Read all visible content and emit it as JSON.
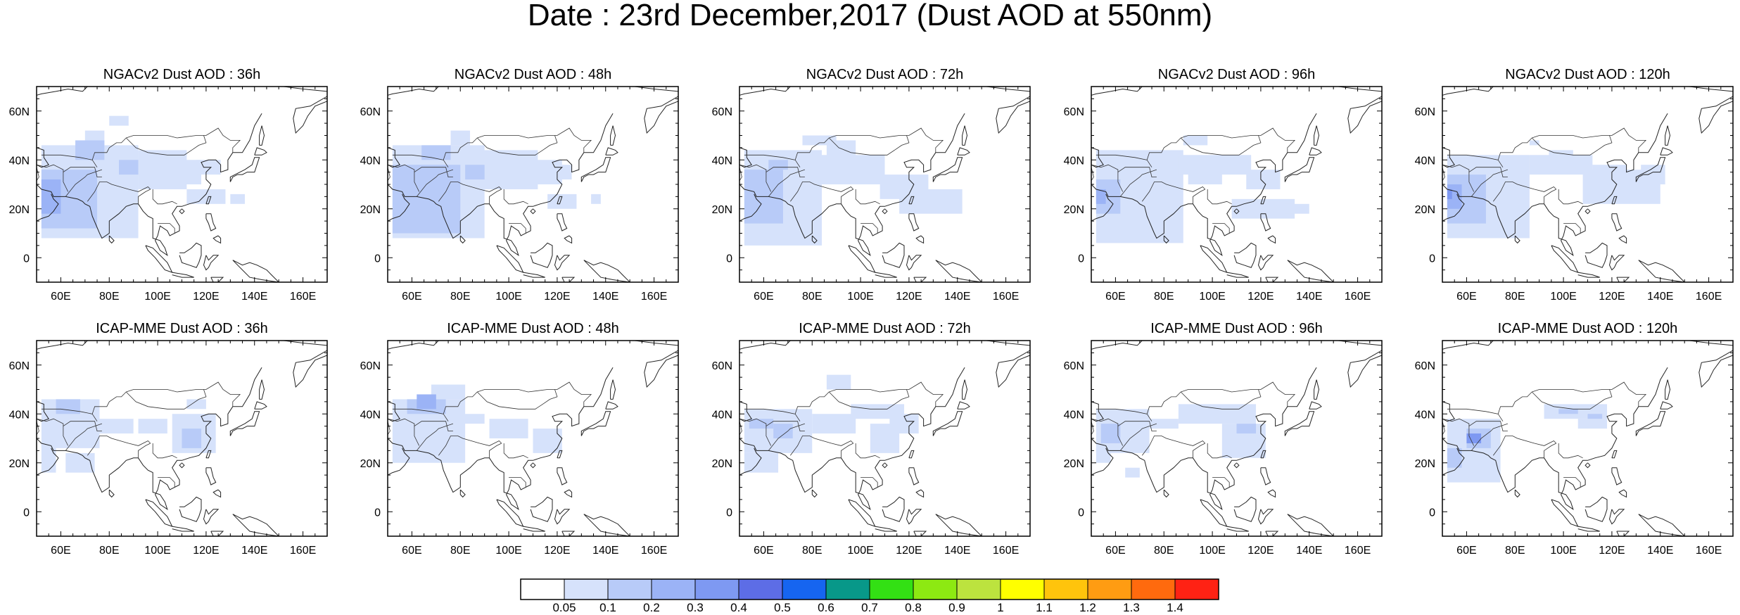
{
  "title": "Date : 23rd December,2017 (Dust AOD at 550nm)",
  "lon_tick_labels": [
    "60E",
    "80E",
    "100E",
    "120E",
    "140E",
    "160E"
  ],
  "lat_tick_labels": [
    "60N",
    "40N",
    "20N",
    "0"
  ],
  "panels": [
    {
      "title": "NGACv2 Dust AOD : 36h",
      "row": 0,
      "col": 0
    },
    {
      "title": "NGACv2 Dust AOD : 48h",
      "row": 0,
      "col": 1
    },
    {
      "title": "NGACv2 Dust AOD : 72h",
      "row": 0,
      "col": 2
    },
    {
      "title": "NGACv2 Dust AOD : 96h",
      "row": 0,
      "col": 3
    },
    {
      "title": "NGACv2 Dust AOD : 120h",
      "row": 0,
      "col": 4
    },
    {
      "title": "ICAP-MME Dust AOD : 36h",
      "row": 1,
      "col": 0
    },
    {
      "title": "ICAP-MME Dust AOD : 48h",
      "row": 1,
      "col": 1
    },
    {
      "title": "ICAP-MME Dust AOD : 72h",
      "row": 1,
      "col": 2
    },
    {
      "title": "ICAP-MME Dust AOD : 96h",
      "row": 1,
      "col": 3
    },
    {
      "title": "ICAP-MME Dust AOD : 120h",
      "row": 1,
      "col": 4
    }
  ],
  "colorbar": {
    "labels": [
      "0.05",
      "0.1",
      "0.2",
      "0.3",
      "0.4",
      "0.5",
      "0.6",
      "0.7",
      "0.8",
      "0.9",
      "1",
      "1.1",
      "1.2",
      "1.3",
      "1.4"
    ],
    "colors": [
      "#ffffff",
      "#d6e2fb",
      "#b8cbf8",
      "#9bb3f6",
      "#7e99f2",
      "#5d6de6",
      "#1665f0",
      "#089889",
      "#33e014",
      "#8de912",
      "#bce33e",
      "#ffff00",
      "#ffc40c",
      "#ff9c12",
      "#ff6a0e",
      "#ff2214"
    ]
  }
}
